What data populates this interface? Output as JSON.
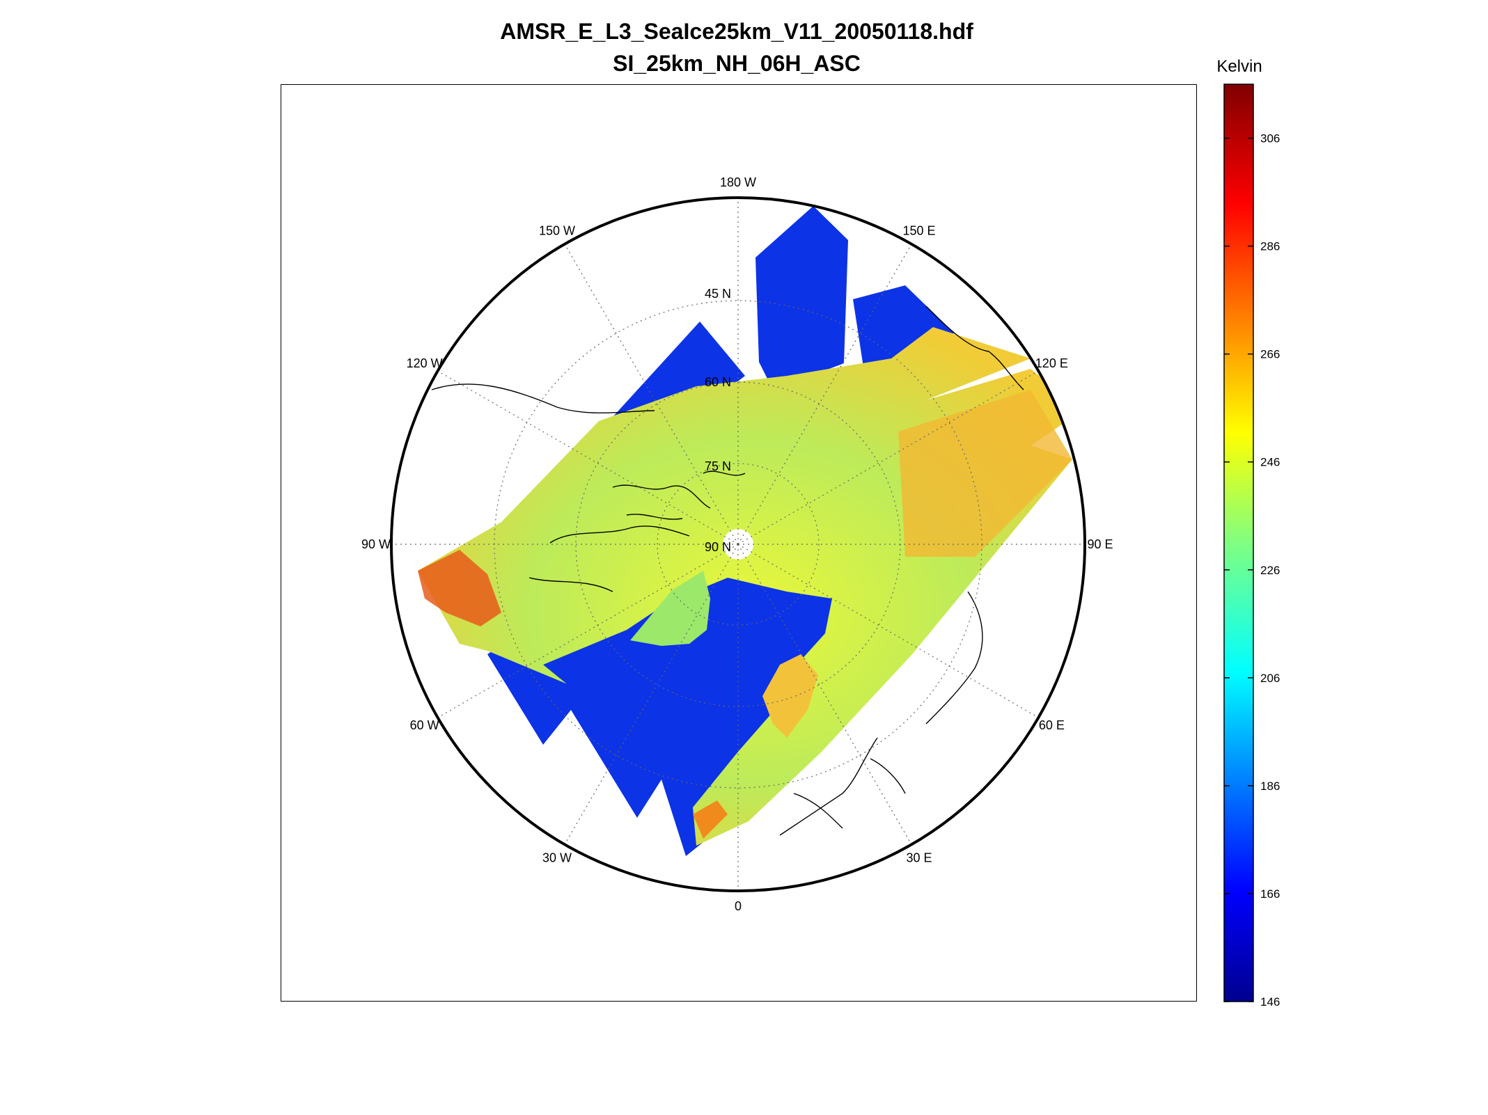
{
  "title": {
    "line1": "AMSR_E_L3_SeaIce25km_V11_20050118.hdf",
    "line2": "SI_25km_NH_06H_ASC"
  },
  "map": {
    "projection": "north-polar-stereographic",
    "center_label": "90 N",
    "latitude_labels": [
      "45 N",
      "60 N",
      "75 N",
      "90 N"
    ],
    "longitude_labels": [
      {
        "lon": 0,
        "label": "0"
      },
      {
        "lon": 30,
        "label": "30 E"
      },
      {
        "lon": 60,
        "label": "60 E"
      },
      {
        "lon": 90,
        "label": "90 E"
      },
      {
        "lon": 120,
        "label": "120 E"
      },
      {
        "lon": 150,
        "label": "150 E"
      },
      {
        "lon": 180,
        "label": "180 W"
      },
      {
        "lon": -150,
        "label": "150 W"
      },
      {
        "lon": -120,
        "label": "120 W"
      },
      {
        "lon": -90,
        "label": "90 W"
      },
      {
        "lon": -60,
        "label": "60 W"
      },
      {
        "lon": -30,
        "label": "30 W"
      }
    ],
    "lat_circles": [
      45,
      60,
      75
    ],
    "colors": {
      "ocean_open": "#0a2ee0",
      "ice_cold": "#8ee07a",
      "ice_mid": "#d8f04a",
      "land_warm": "#f5c23a",
      "land_hot": "#f08a1c",
      "coast": "#000000"
    }
  },
  "colorbar": {
    "unit": "Kelvin",
    "min": 146,
    "max": 316,
    "ticks": [
      146,
      166,
      186,
      206,
      226,
      246,
      266,
      286,
      306
    ],
    "tick_labels": [
      "146",
      "166",
      "186",
      "206",
      "226",
      "246",
      "266",
      "286",
      "306"
    ],
    "colormap": "jet"
  }
}
